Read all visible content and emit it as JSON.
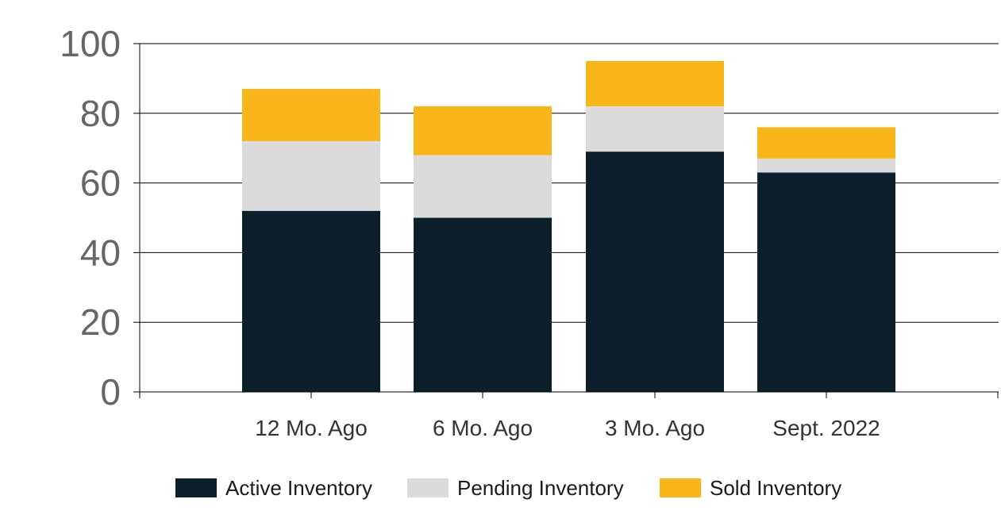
{
  "chart_data": {
    "type": "bar",
    "stacked": true,
    "categories": [
      "12 Mo. Ago",
      "6 Mo. Ago",
      "3 Mo. Ago",
      "Sept. 2022"
    ],
    "series": [
      {
        "name": "Active Inventory",
        "values": [
          52,
          50,
          69,
          63
        ],
        "color": "#0d1f2a"
      },
      {
        "name": "Pending Inventory",
        "values": [
          20,
          18,
          13,
          4
        ],
        "color": "#dcdcdc"
      },
      {
        "name": "Sold Inventory",
        "values": [
          15,
          14,
          13,
          9
        ],
        "color": "#f9b51a"
      }
    ],
    "ylim": [
      0,
      100
    ],
    "yticks": [
      "0",
      "20",
      "40",
      "60",
      "80",
      "100"
    ],
    "grid": true,
    "legend": "bottom",
    "title": "",
    "xlabel": "",
    "ylabel": ""
  }
}
